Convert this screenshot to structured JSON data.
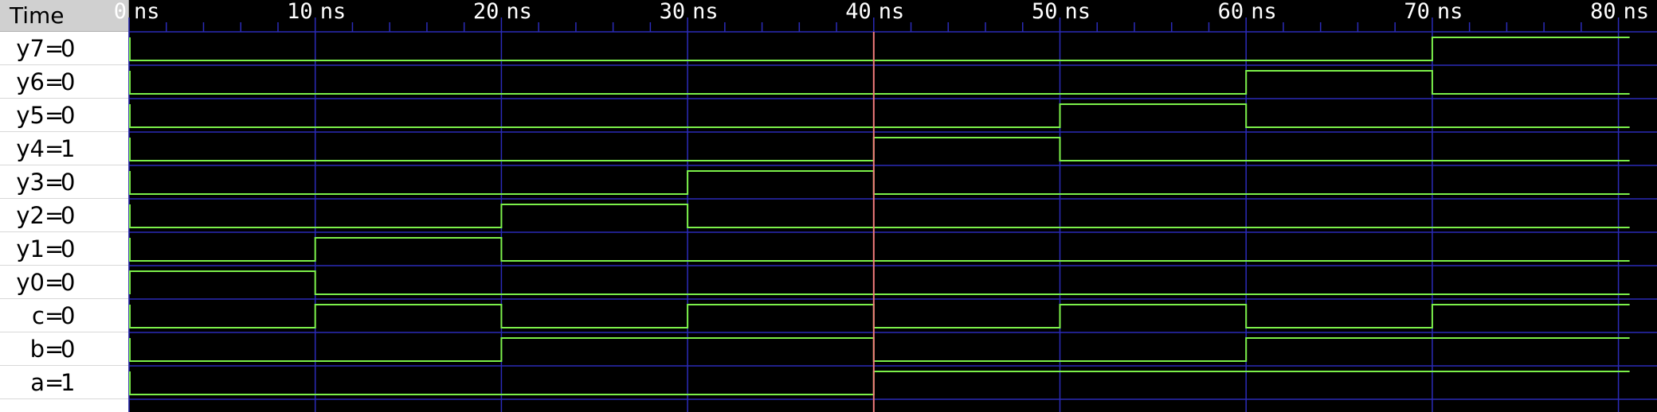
{
  "header": {
    "time_label": "Time"
  },
  "timeline": {
    "unit": "ns",
    "ticks": [
      "0",
      "10",
      "20",
      "30",
      "40",
      "50",
      "60",
      "70",
      "80"
    ],
    "cursor_time": 40
  },
  "signals": [
    {
      "name": "y7",
      "value": "0",
      "waveform": [
        [
          0,
          0
        ],
        [
          70,
          1
        ]
      ]
    },
    {
      "name": "y6",
      "value": "0",
      "waveform": [
        [
          0,
          0
        ],
        [
          60,
          1
        ],
        [
          70,
          0
        ]
      ]
    },
    {
      "name": "y5",
      "value": "0",
      "waveform": [
        [
          0,
          0
        ],
        [
          50,
          1
        ],
        [
          60,
          0
        ]
      ]
    },
    {
      "name": "y4",
      "value": "1",
      "waveform": [
        [
          0,
          0
        ],
        [
          40,
          1
        ],
        [
          50,
          0
        ]
      ]
    },
    {
      "name": "y3",
      "value": "0",
      "waveform": [
        [
          0,
          0
        ],
        [
          30,
          1
        ],
        [
          40,
          0
        ]
      ]
    },
    {
      "name": "y2",
      "value": "0",
      "waveform": [
        [
          0,
          0
        ],
        [
          20,
          1
        ],
        [
          30,
          0
        ]
      ]
    },
    {
      "name": "y1",
      "value": "0",
      "waveform": [
        [
          0,
          0
        ],
        [
          10,
          1
        ],
        [
          20,
          0
        ]
      ]
    },
    {
      "name": "y0",
      "value": "0",
      "waveform": [
        [
          0,
          1
        ],
        [
          10,
          0
        ]
      ]
    },
    {
      "name": "c",
      "value": "0",
      "waveform": [
        [
          0,
          0
        ],
        [
          10,
          1
        ],
        [
          20,
          0
        ],
        [
          30,
          1
        ],
        [
          40,
          0
        ],
        [
          50,
          1
        ],
        [
          60,
          0
        ],
        [
          70,
          1
        ]
      ]
    },
    {
      "name": "b",
      "value": "0",
      "waveform": [
        [
          0,
          0
        ],
        [
          20,
          1
        ],
        [
          40,
          0
        ],
        [
          60,
          1
        ]
      ]
    },
    {
      "name": "a",
      "value": "1",
      "waveform": [
        [
          0,
          0
        ],
        [
          40,
          1
        ]
      ]
    }
  ],
  "colors": {
    "background": "#000000",
    "waveform": "#7cf04a",
    "grid": "#2b2bb8",
    "cursor": "#f07a7a",
    "text": "#ffffff"
  }
}
